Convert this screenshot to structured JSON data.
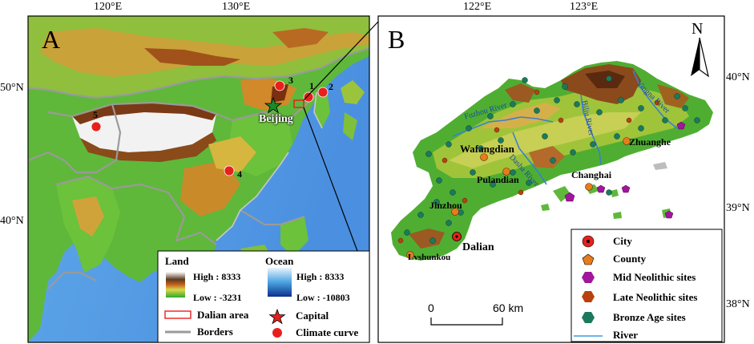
{
  "panelA": {
    "label": "A",
    "ticks_top": [
      "120°E",
      "130°E"
    ],
    "ticks_left": [
      "50°N",
      "40°N"
    ],
    "points": [
      {
        "id": "5",
        "label": "5"
      },
      {
        "id": "4",
        "label": "4"
      },
      {
        "id": "3",
        "label": "3"
      },
      {
        "id": "1",
        "label": "1"
      },
      {
        "id": "2",
        "label": "2"
      }
    ],
    "capital_label": "Beijing",
    "legend": {
      "land_title": "Land",
      "land_high": "High : 8333",
      "land_low": "Low : -3231",
      "ocean_title": "Ocean",
      "ocean_high": "High : 8333",
      "ocean_low": "Low : -10803",
      "dalian_area": "Dalian area",
      "borders": "Borders",
      "capital": "Capital",
      "climate_curve": "Climate curve"
    }
  },
  "panelB": {
    "label": "B",
    "ticks_top": [
      "122°E",
      "123°E"
    ],
    "ticks_right": [
      "40°N",
      "39°N",
      "38°N"
    ],
    "north": "N",
    "places": {
      "dalian": "Dalian",
      "lvshunkou": "Lvshunkou",
      "jinzhou": "Jinzhou",
      "pulandian": "Pulandian",
      "wafangdian": "Wafangdian",
      "changhai": "Changhai",
      "zhuanghe": "Zhuanghe"
    },
    "rivers": {
      "fuzhou": "Fuzhou River",
      "dasha": "Dasha River",
      "biliu": "Biliu River",
      "yingna": "Yingna River"
    },
    "scale": {
      "start": "0",
      "end": "60 km"
    },
    "legend": [
      {
        "key": "city",
        "label": "City",
        "color": "#e8201c"
      },
      {
        "key": "county",
        "label": "County",
        "color": "#e87b1c"
      },
      {
        "key": "mid_neolithic",
        "label": "Mid Neolithic sites",
        "color": "#a0169c"
      },
      {
        "key": "late_neolithic",
        "label": "Late Neolithic sites",
        "color": "#b8420f"
      },
      {
        "key": "bronze_age",
        "label": "Bronze Age sites",
        "color": "#1b7a5e"
      },
      {
        "key": "river",
        "label": "River",
        "color": "#3b9be0"
      }
    ]
  }
}
